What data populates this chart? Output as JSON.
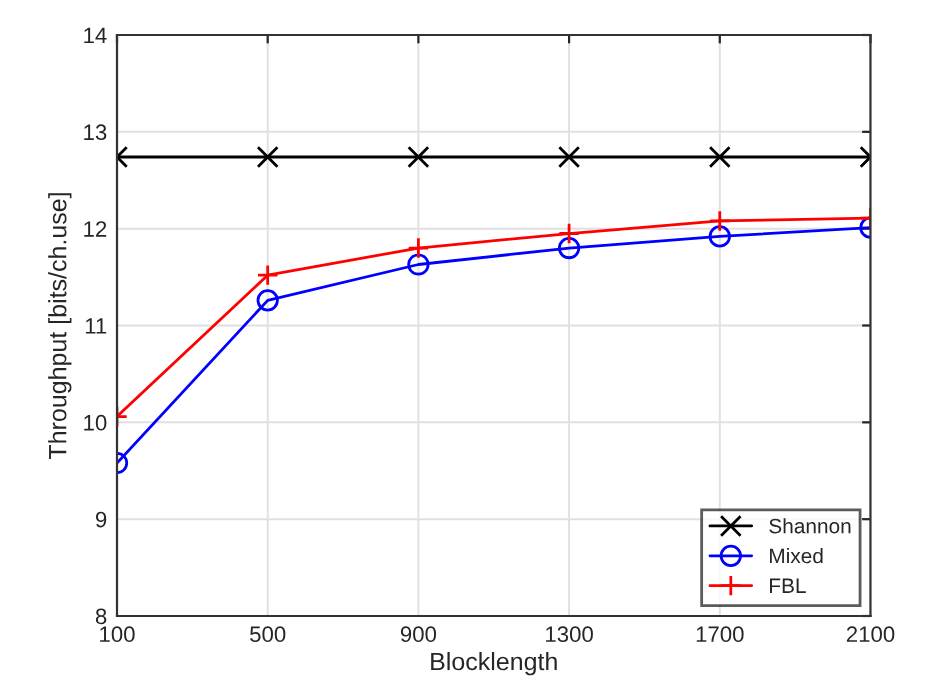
{
  "chart_data": {
    "type": "line",
    "xlabel": "Blocklength",
    "ylabel": "Throughput [bits/ch.use]",
    "x": [
      100,
      500,
      900,
      1300,
      1700,
      2100
    ],
    "series": [
      {
        "name": "Shannon",
        "color": "#000000",
        "marker": "cross",
        "values": [
          12.74,
          12.74,
          12.74,
          12.74,
          12.74,
          12.74
        ]
      },
      {
        "name": "Mixed",
        "color": "#0000ff",
        "marker": "circle",
        "values": [
          9.58,
          11.26,
          11.63,
          11.8,
          11.92,
          12.01
        ]
      },
      {
        "name": "FBL",
        "color": "#ff0000",
        "marker": "plus",
        "values": [
          10.06,
          11.52,
          11.8,
          11.95,
          12.08,
          12.11
        ]
      }
    ],
    "xlim": [
      100,
      2100
    ],
    "xticks": [
      100,
      500,
      900,
      1300,
      1700,
      2100
    ],
    "ylim": [
      8,
      14
    ],
    "yticks": [
      8,
      9,
      10,
      11,
      12,
      13,
      14
    ],
    "grid": true,
    "legend": "bottom right"
  }
}
